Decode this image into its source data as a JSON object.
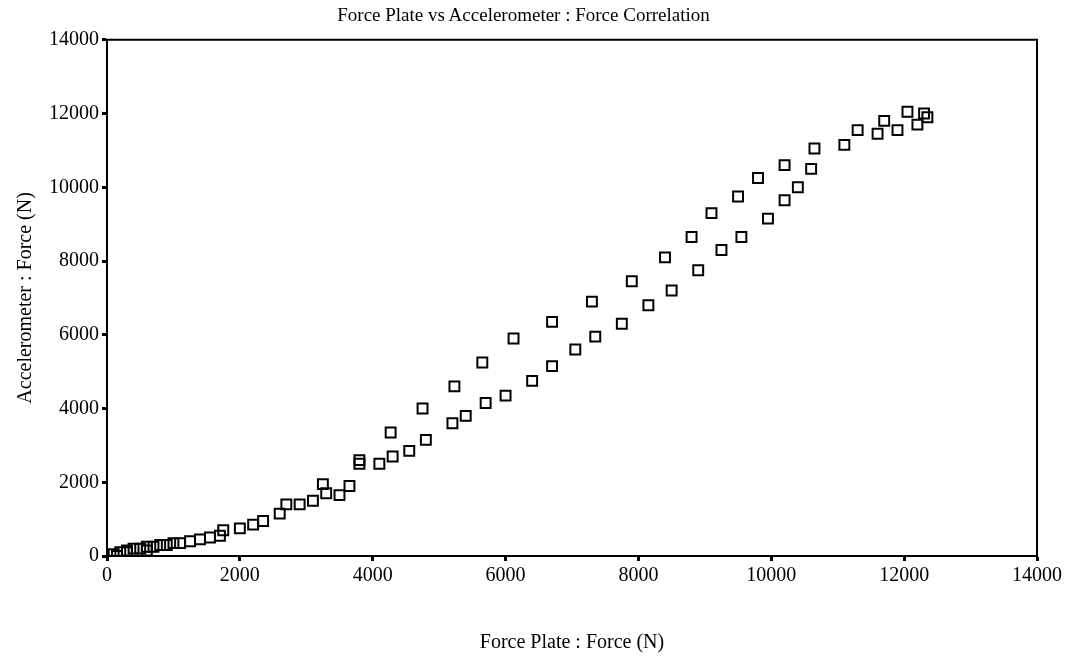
{
  "chart_data": {
    "type": "scatter",
    "title": "Force Plate vs Accelerometer : Force Correlation",
    "xlabel": "Force Plate : Force (N)",
    "ylabel": "Accelerometer : Force (N)",
    "marker": "square",
    "grid": false,
    "legend": false,
    "xlim": [
      0,
      14000
    ],
    "xticks": [
      0,
      2000,
      4000,
      6000,
      8000,
      10000,
      12000,
      14000
    ],
    "ylim": [
      0,
      14000
    ],
    "yticks": [
      0,
      2000,
      4000,
      6000,
      8000,
      10000,
      12000,
      14000
    ],
    "series": [
      {
        "color": "#000000",
        "x": [
          100,
          150,
          200,
          300,
          300,
          400,
          500,
          600,
          600,
          700,
          800,
          900,
          1000,
          1100,
          1250,
          1400,
          1550,
          1700,
          1750,
          2000,
          2200,
          2350,
          2600,
          2700,
          2900,
          3100,
          3250,
          3300,
          3500,
          3650,
          3800,
          3800,
          4100,
          4270,
          4300,
          4550,
          4750,
          4800,
          5200,
          5230,
          5400,
          5650,
          5700,
          6000,
          6120,
          6400,
          6700,
          6700,
          7050,
          7300,
          7350,
          7750,
          7900,
          8150,
          8400,
          8500,
          8800,
          8900,
          9100,
          9250,
          9500,
          9550,
          9800,
          9950,
          10200,
          10200,
          10400,
          10600,
          10650,
          11100,
          11300,
          11600,
          11700,
          11900,
          12050,
          12200,
          12300,
          12350
        ],
        "values": [
          50,
          0,
          100,
          150,
          100,
          200,
          200,
          250,
          150,
          250,
          300,
          300,
          350,
          350,
          400,
          450,
          500,
          550,
          700,
          750,
          850,
          950,
          1150,
          1400,
          1400,
          1500,
          1950,
          1700,
          1650,
          1900,
          2600,
          2500,
          2500,
          3350,
          2700,
          2850,
          4000,
          3150,
          3600,
          4600,
          3800,
          5250,
          4150,
          4350,
          5900,
          4750,
          6350,
          5150,
          5600,
          6900,
          5950,
          6300,
          7450,
          6800,
          8100,
          7200,
          8650,
          7750,
          9300,
          8300,
          9750,
          8650,
          10250,
          9150,
          10600,
          9650,
          10000,
          10500,
          11050,
          11150,
          11550,
          11450,
          11800,
          11550,
          12050,
          11700,
          12000,
          11900
        ]
      }
    ]
  }
}
